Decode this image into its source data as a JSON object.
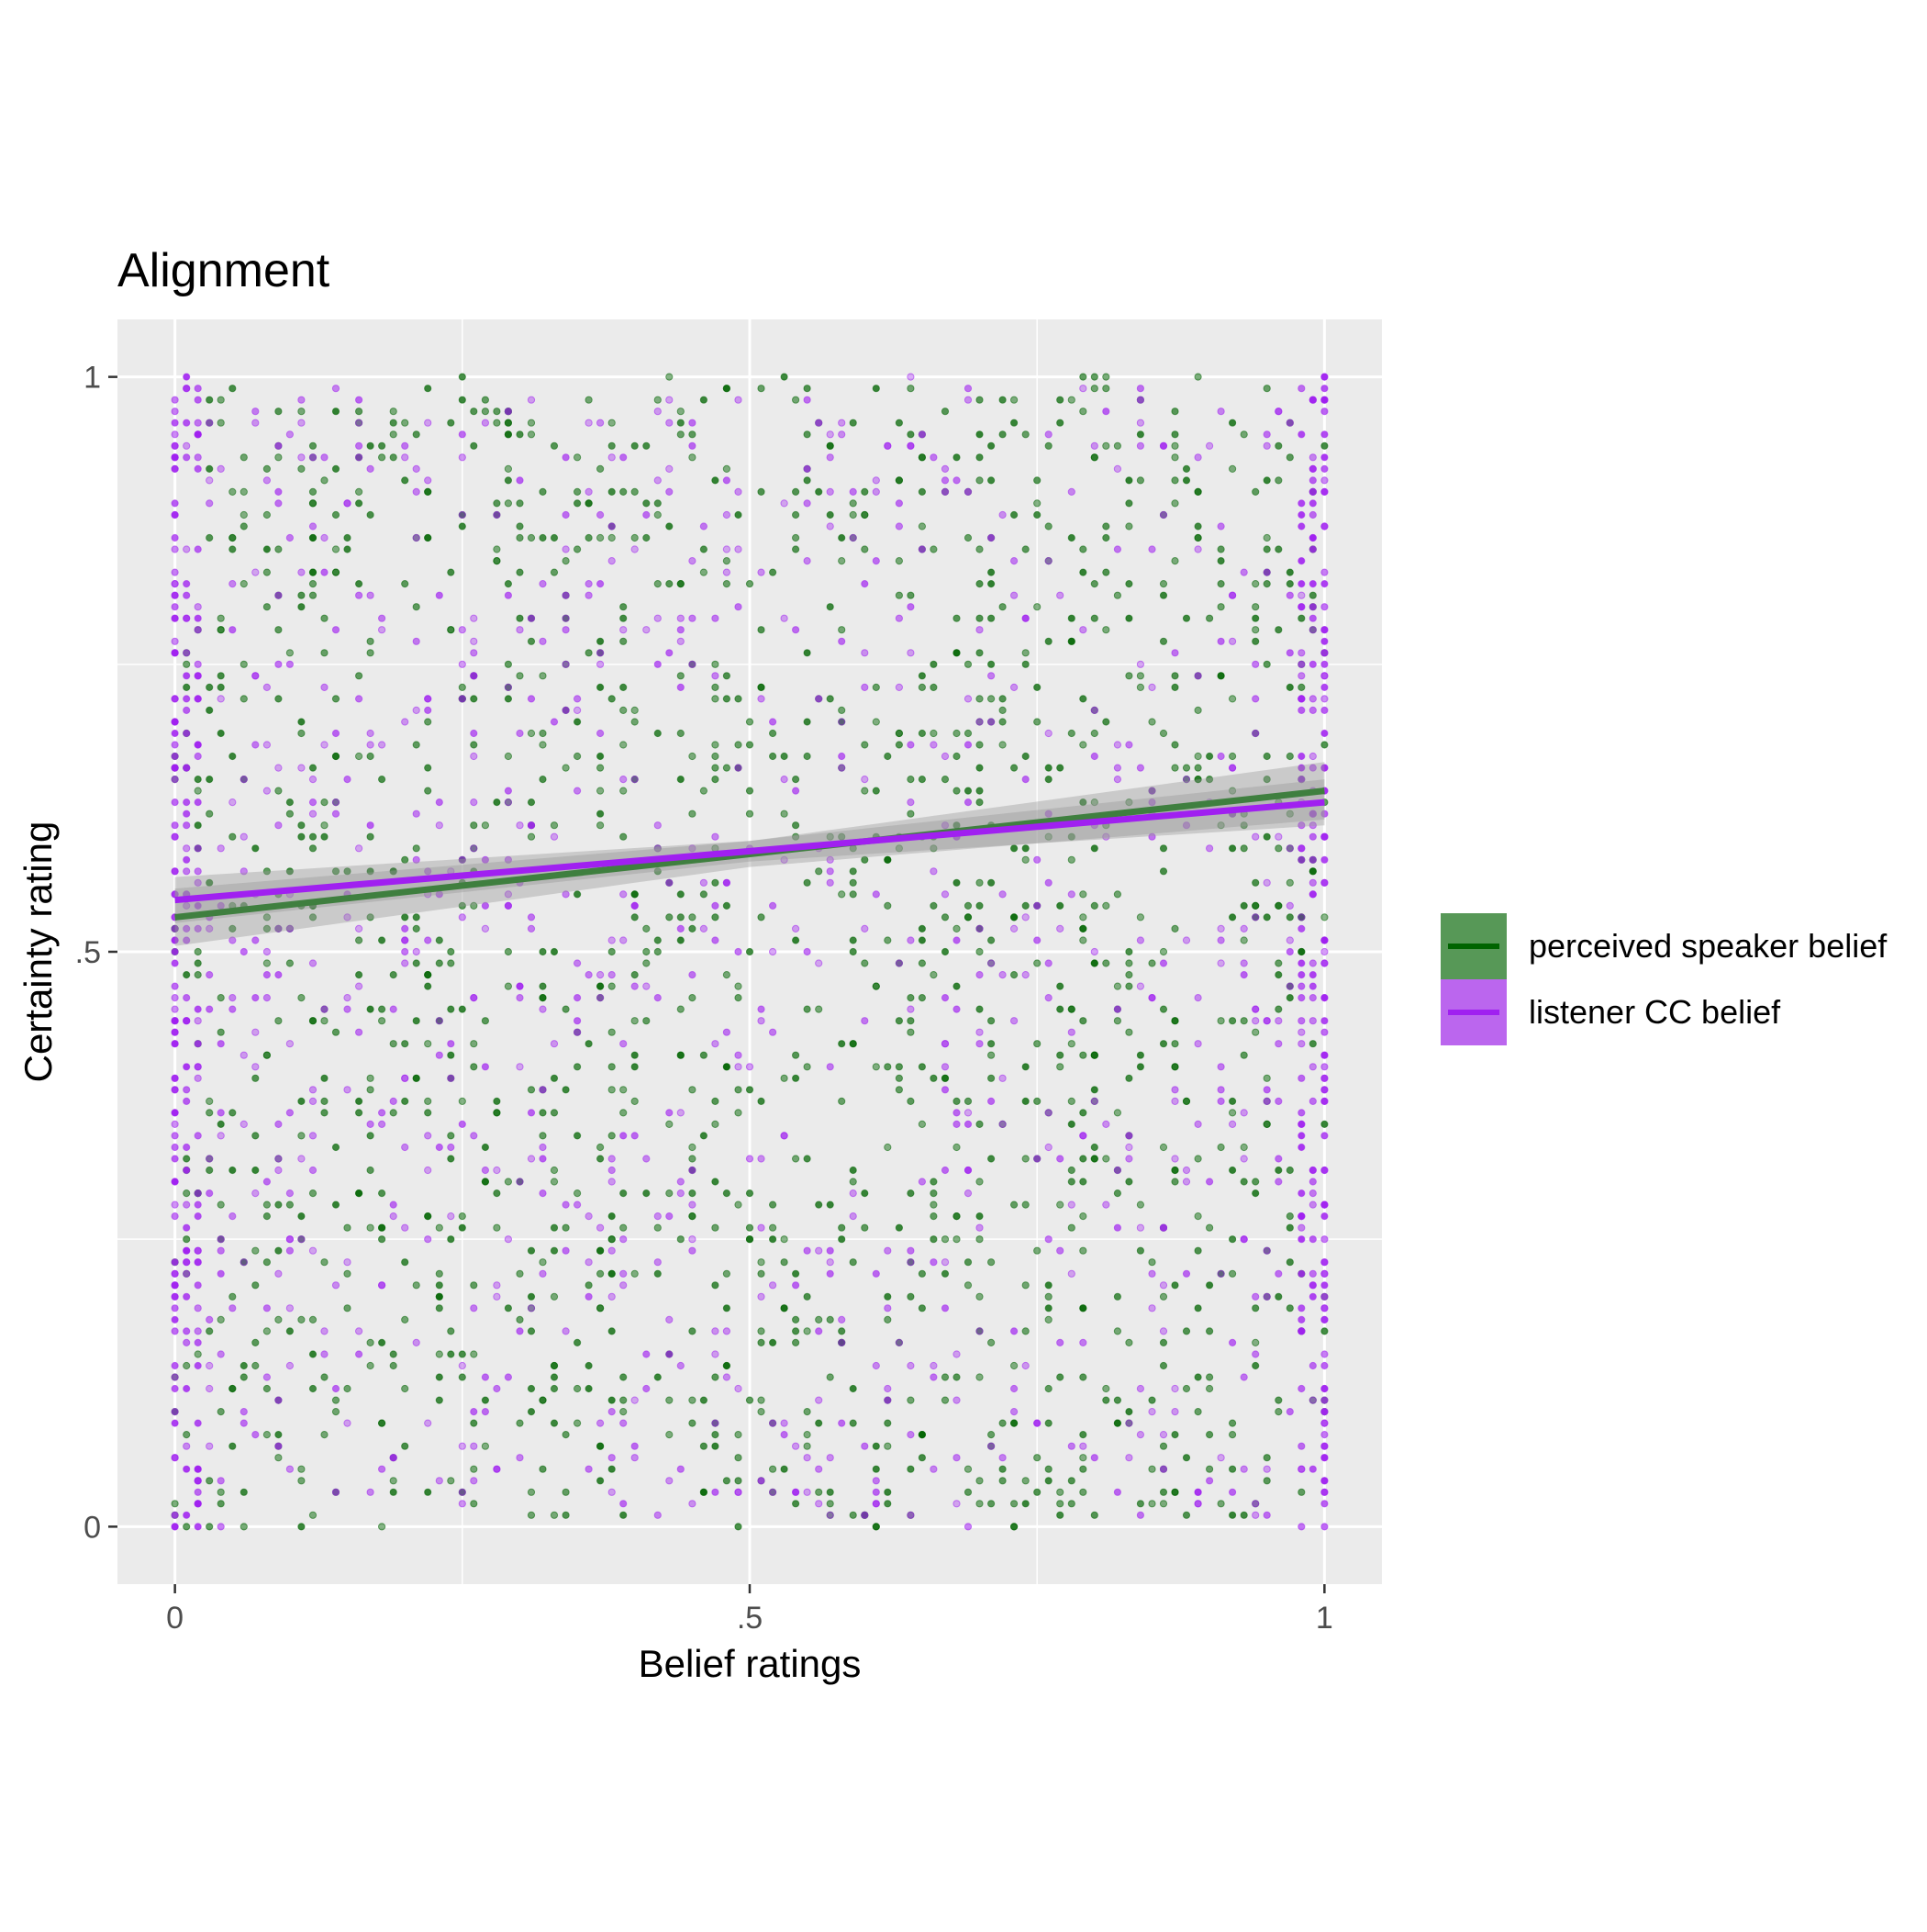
{
  "chart_data": {
    "type": "scatter",
    "title": "Alignment",
    "xlabel": "Belief ratings",
    "ylabel": "Certainty rating",
    "xlim": [
      -0.05,
      1.05
    ],
    "ylim": [
      -0.05,
      1.05
    ],
    "x_ticks": [
      0,
      0.5,
      1
    ],
    "x_tick_labels": [
      "0",
      ".5",
      "1"
    ],
    "y_ticks": [
      0,
      0.5,
      1
    ],
    "y_tick_labels": [
      "0",
      ".5",
      "1"
    ],
    "grid": true,
    "legend_position": "right",
    "series": [
      {
        "name": "perceived speaker belief",
        "color": "#006400",
        "fit": {
          "intercept": 0.53,
          "slope": 0.11,
          "ci_halfwidth_ends": 0.025
        }
      },
      {
        "name": "listener CC belief",
        "color": "#a020f0",
        "fit": {
          "intercept": 0.545,
          "slope": 0.085,
          "ci_halfwidth_ends": 0.02
        }
      }
    ],
    "point_note": "jittered ratings on a 0.01 grid spanning [0,1]x[0,1], dense at x=0 and x=1 for listener CC belief"
  }
}
